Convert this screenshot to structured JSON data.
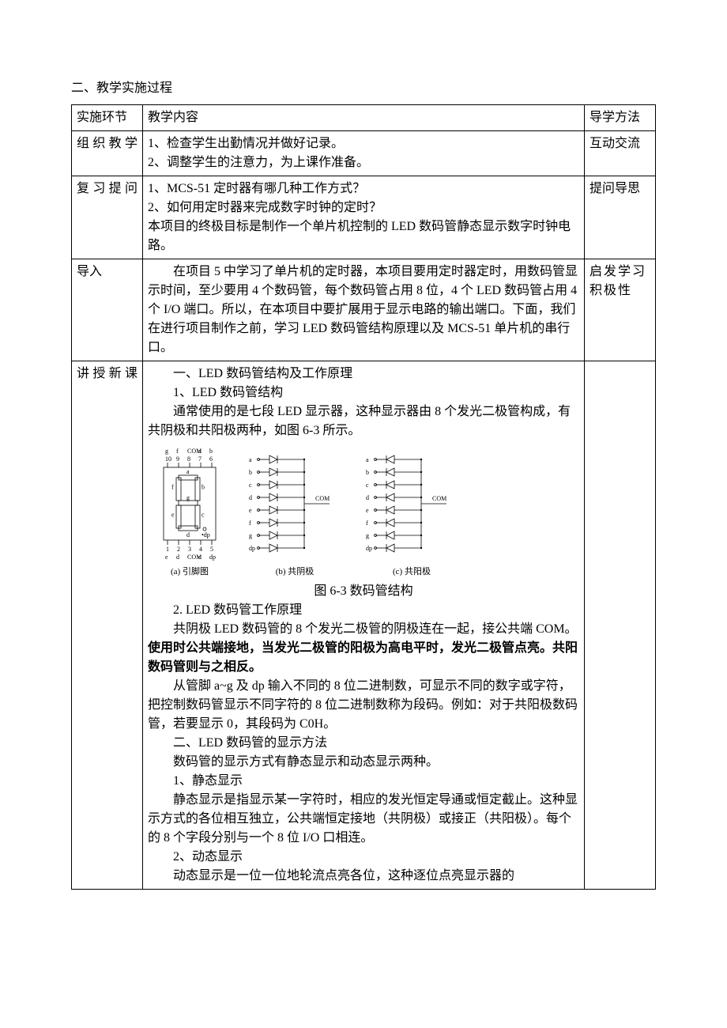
{
  "section_title": "二、教学实施过程",
  "table": {
    "headers": {
      "col1": "实施环节",
      "col2": "教学内容",
      "col3": "导学方法"
    },
    "rows": [
      {
        "label": "组织教学",
        "content": [
          {
            "t": "1、检查学生出勤情况并做好记录。",
            "indent": false
          },
          {
            "t": "2、调整学生的注意力，为上课作准备。",
            "indent": false
          }
        ],
        "method": "互动交流"
      },
      {
        "label": "复习提问",
        "content": [
          {
            "t": "1、MCS-51 定时器有哪几种工作方式？",
            "indent": false
          },
          {
            "t": "2、如何用定时器来完成数字时钟的定时？",
            "indent": false
          },
          {
            "t": "本项目的终极目标是制作一个单片机控制的 LED 数码管静态显示数字时钟电路。",
            "indent": false
          }
        ],
        "method": "提问导思"
      },
      {
        "label": "导入",
        "content": [
          {
            "t": "在项目 5 中学习了单片机的定时器，本项目要用定时器定时，用数码管显示时间，至少要用 4 个数码管，每个数码管占用 8 位，4 个 LED 数码管占用 4 个 I/O 端口。所以，在本项目中要扩展用于显示电路的输出端口。下面，我们在进行项目制作之前，学习 LED 数码管结构原理以及 MCS-51 单片机的串行口。",
            "indent": true
          }
        ],
        "method": "启发学习积极性"
      },
      {
        "label": "讲授新课",
        "content": [
          {
            "t": "一、LED 数码管结构及工作原理",
            "indent": true
          },
          {
            "t": "1、LED 数码管结构",
            "indent": true
          },
          {
            "t": "通常使用的是七段 LED 显示器，这种显示器由 8 个发光二极管构成，有共阴极和共阳极两种，如图 6-3 所示。",
            "indent": true
          }
        ],
        "figure": {
          "caption": "图 6-3 数码管结构",
          "sub_captions": [
            "(a) 引脚图",
            "(b) 共阴极",
            "(c) 共阳极"
          ],
          "segments": [
            "a",
            "b",
            "c",
            "d",
            "e",
            "f",
            "g",
            "dp"
          ],
          "top_pins": [
            "g",
            "f",
            "COM",
            "a",
            "b"
          ],
          "top_pin_nums": [
            "10",
            "9",
            "8",
            "7",
            "6"
          ],
          "bottom_pins": [
            "e",
            "d",
            "COM",
            "c",
            "dp"
          ],
          "bottom_pin_nums": [
            "1",
            "2",
            "3",
            "4",
            "5"
          ],
          "com_label": "COM",
          "stroke": "#000000",
          "bg": "#ffffff",
          "font_size_small": 8
        },
        "content_after": [
          {
            "t": "2.  LED 数码管工作原理",
            "indent": true
          },
          {
            "t": "共阴极 LED 数码管的 8 个发光二极管的阴极连在一起，接公共端 COM。",
            "indent": true,
            "bold_suffix": "使用时公共端接地，当发光二极管的阳极为高电平时，发光二极管点亮。共阳数码管则与之相反。"
          },
          {
            "t": "从管脚 a~g 及 dp 输入不同的 8 位二进制数，可显示不同的数字或字符，把控制数码管显示不同字符的 8 位二进制数称为段码。例如：对于共阳极数码管，若要显示 0，其段码为 C0H。",
            "indent": true
          },
          {
            "t": "二、LED 数码管的显示方法",
            "indent": true
          },
          {
            "t": "数码管的显示方式有静态显示和动态显示两种。",
            "indent": true
          },
          {
            "t": "1、静态显示",
            "indent": true
          },
          {
            "t": "静态显示是指显示某一字符时，相应的发光恒定导通或恒定截止。这种显示方式的各位相互独立，公共端恒定接地（共阴极）或接正（共阳极）。每个的 8 个字段分别与一个 8 位 I/O 口相连。",
            "indent": true
          },
          {
            "t": "2、动态显示",
            "indent": true
          },
          {
            "t": "动态显示是一位一位地轮流点亮各位，这种逐位点亮显示器的",
            "indent": true
          }
        ],
        "method": ""
      }
    ]
  }
}
